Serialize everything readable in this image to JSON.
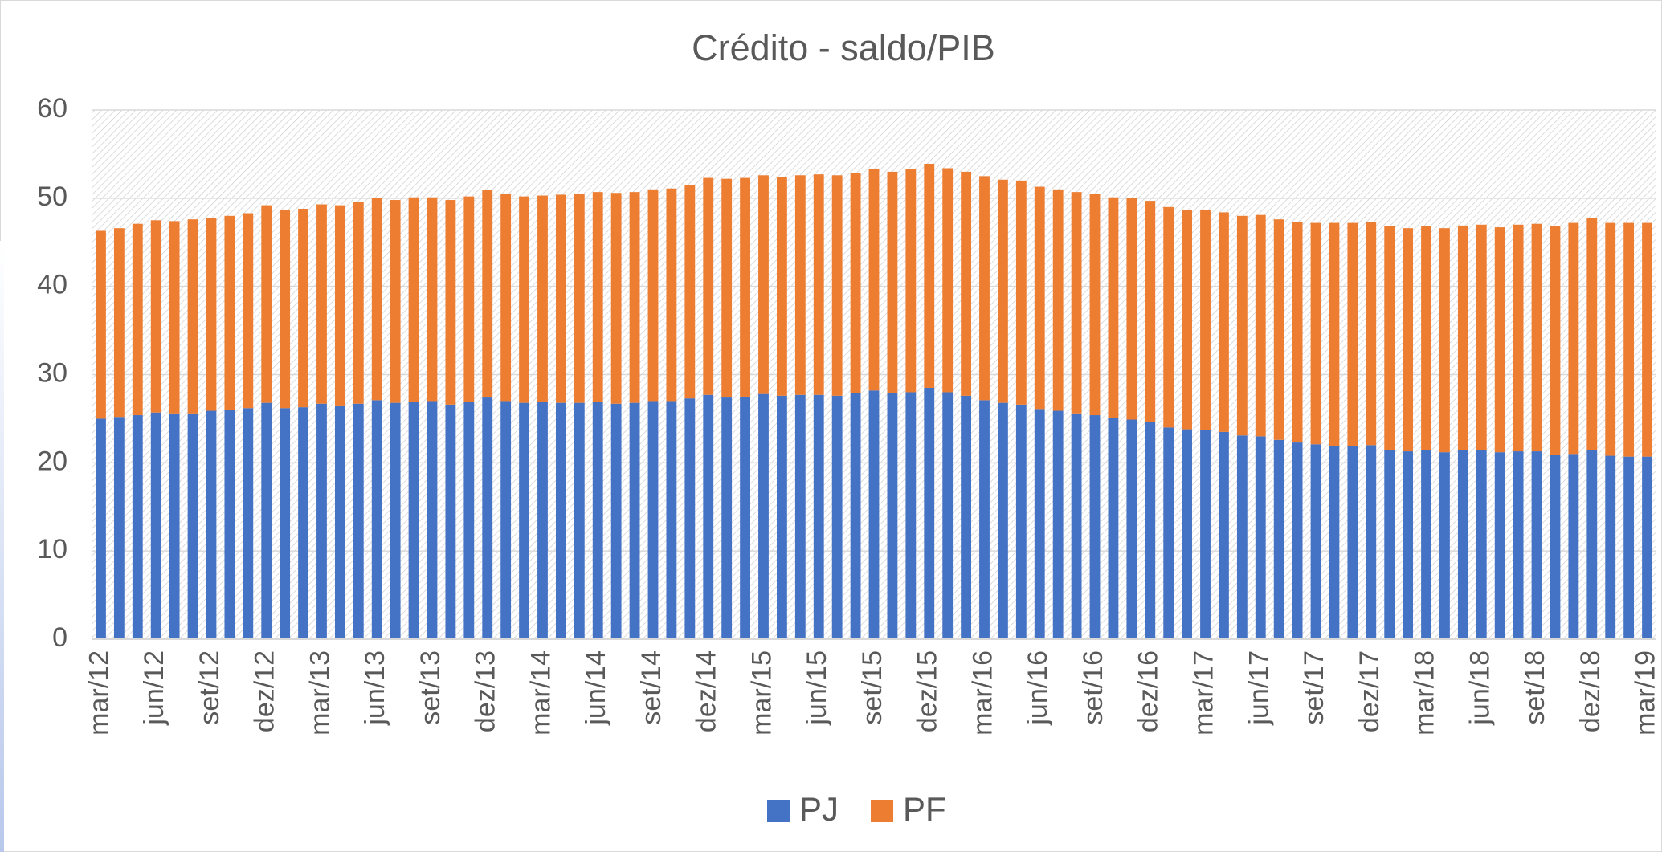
{
  "chart_data": {
    "type": "stacked_bar",
    "title": "Crédito - saldo/PIB",
    "categories": [
      "mar/12",
      null,
      null,
      "jun/12",
      null,
      null,
      "set/12",
      null,
      null,
      "dez/12",
      null,
      null,
      "mar/13",
      null,
      null,
      "jun/13",
      null,
      null,
      "set/13",
      null,
      null,
      "dez/13",
      null,
      null,
      "mar/14",
      null,
      null,
      "jun/14",
      null,
      null,
      "set/14",
      null,
      null,
      "dez/14",
      null,
      null,
      "mar/15",
      null,
      null,
      "jun/15",
      null,
      null,
      "set/15",
      null,
      null,
      "dez/15",
      null,
      null,
      "mar/16",
      null,
      null,
      "jun/16",
      null,
      null,
      "set/16",
      null,
      null,
      "dez/16",
      null,
      null,
      "mar/17",
      null,
      null,
      "jun/17",
      null,
      null,
      "set/17",
      null,
      null,
      "dez/17",
      null,
      null,
      "mar/18",
      null,
      null,
      "jun/18",
      null,
      null,
      "set/18",
      null,
      null,
      "dez/18",
      null,
      null,
      "mar/19"
    ],
    "series": [
      {
        "name": "PJ",
        "color": "#4472c4",
        "values": [
          25.0,
          25.2,
          25.4,
          25.7,
          25.6,
          25.6,
          25.9,
          26.0,
          26.2,
          26.8,
          26.2,
          26.3,
          26.7,
          26.5,
          26.7,
          27.1,
          26.8,
          26.9,
          27.0,
          26.6,
          26.9,
          27.4,
          27.0,
          26.8,
          26.9,
          26.8,
          26.8,
          26.9,
          26.7,
          26.8,
          27.0,
          27.0,
          27.3,
          27.7,
          27.4,
          27.5,
          27.8,
          27.6,
          27.7,
          27.7,
          27.6,
          27.9,
          28.2,
          27.9,
          28.0,
          28.5,
          28.0,
          27.6,
          27.1,
          26.8,
          26.6,
          26.1,
          25.9,
          25.6,
          25.4,
          25.1,
          24.9,
          24.6,
          24.0,
          23.8,
          23.7,
          23.5,
          23.1,
          23.0,
          22.6,
          22.3,
          22.1,
          21.9,
          21.9,
          22.0,
          21.4,
          21.3,
          21.4,
          21.2,
          21.4,
          21.4,
          21.2,
          21.3,
          21.3,
          20.9,
          21.0,
          21.4,
          20.8,
          20.7,
          20.7
        ]
      },
      {
        "name": "PF",
        "color": "#ed7d31",
        "values": [
          21.3,
          21.4,
          21.7,
          21.8,
          21.8,
          22.0,
          21.9,
          22.0,
          22.1,
          22.4,
          22.5,
          22.5,
          22.6,
          22.7,
          22.9,
          22.9,
          23.0,
          23.2,
          23.1,
          23.2,
          23.3,
          23.5,
          23.5,
          23.4,
          23.4,
          23.6,
          23.7,
          23.8,
          23.9,
          23.9,
          24.0,
          24.1,
          24.2,
          24.6,
          24.8,
          24.8,
          24.8,
          24.8,
          24.9,
          25.0,
          25.0,
          25.0,
          25.1,
          25.1,
          25.3,
          25.4,
          25.4,
          25.4,
          25.4,
          25.3,
          25.4,
          25.2,
          25.1,
          25.1,
          25.1,
          25.0,
          25.1,
          25.1,
          25.0,
          24.9,
          25.0,
          24.9,
          24.9,
          25.1,
          25.0,
          25.0,
          25.1,
          25.3,
          25.3,
          25.3,
          25.4,
          25.3,
          25.4,
          25.4,
          25.5,
          25.6,
          25.5,
          25.7,
          25.8,
          25.9,
          26.2,
          26.4,
          26.4,
          26.5,
          26.5
        ]
      }
    ],
    "ylim": [
      0,
      60
    ],
    "yticks": [
      0,
      10,
      20,
      30,
      40,
      50,
      60
    ],
    "grid": true,
    "legend": "bottom"
  }
}
